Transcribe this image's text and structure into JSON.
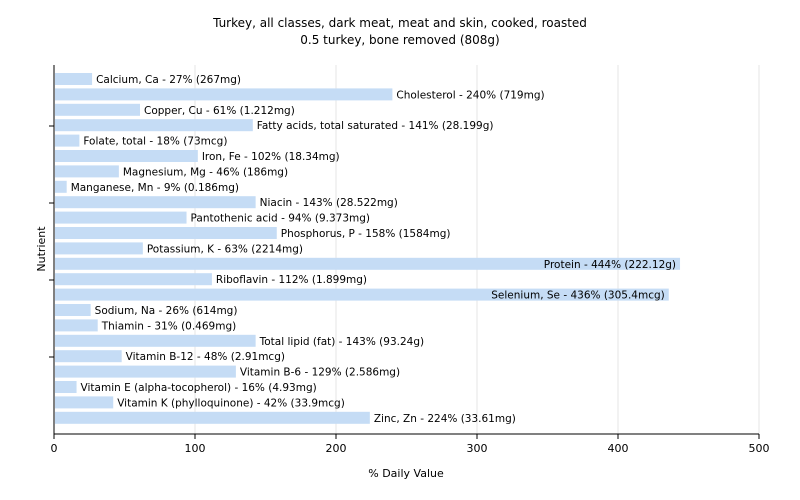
{
  "chart_data": {
    "type": "bar",
    "orientation": "horizontal",
    "title": "Turkey, all classes, dark meat, meat and skin, cooked, roasted",
    "subtitle": "0.5 turkey, bone removed (808g)",
    "xlabel": "% Daily Value",
    "ylabel": "Nutrient",
    "xlim": [
      0,
      500
    ],
    "xticks": [
      0,
      100,
      200,
      300,
      400,
      500
    ],
    "grid": true,
    "bar_color": "#c5dcf5",
    "categories": [
      "Calcium, Ca",
      "Cholesterol",
      "Copper, Cu",
      "Fatty acids, total saturated",
      "Folate, total",
      "Iron, Fe",
      "Magnesium, Mg",
      "Manganese, Mn",
      "Niacin",
      "Pantothenic acid",
      "Phosphorus, P",
      "Potassium, K",
      "Protein",
      "Riboflavin",
      "Selenium, Se",
      "Sodium, Na",
      "Thiamin",
      "Total lipid (fat)",
      "Vitamin B-12",
      "Vitamin B-6",
      "Vitamin E (alpha-tocopherol)",
      "Vitamin K (phylloquinone)",
      "Zinc, Zn"
    ],
    "values": [
      27,
      240,
      61,
      141,
      18,
      102,
      46,
      9,
      143,
      94,
      158,
      63,
      444,
      112,
      436,
      26,
      31,
      143,
      48,
      129,
      16,
      42,
      224
    ],
    "labels": [
      "Calcium, Ca - 27% (267mg)",
      "Cholesterol - 240% (719mg)",
      "Copper, Cu - 61% (1.212mg)",
      "Fatty acids, total saturated - 141% (28.199g)",
      "Folate, total - 18% (73mcg)",
      "Iron, Fe - 102% (18.34mg)",
      "Magnesium, Mg - 46% (186mg)",
      "Manganese, Mn - 9% (0.186mg)",
      "Niacin - 143% (28.522mg)",
      "Pantothenic acid - 94% (9.373mg)",
      "Phosphorus, P - 158% (1584mg)",
      "Potassium, K - 63% (2214mg)",
      "Protein - 444% (222.12g)",
      "Riboflavin - 112% (1.899mg)",
      "Selenium, Se - 436% (305.4mcg)",
      "Sodium, Na - 26% (614mg)",
      "Thiamin - 31% (0.469mg)",
      "Total lipid (fat) - 143% (93.24g)",
      "Vitamin B-12 - 48% (2.91mcg)",
      "Vitamin B-6 - 129% (2.586mg)",
      "Vitamin E (alpha-tocopherol) - 16% (4.93mg)",
      "Vitamin K (phylloquinone) - 42% (33.9mcg)",
      "Zinc, Zn - 224% (33.61mg)"
    ]
  }
}
